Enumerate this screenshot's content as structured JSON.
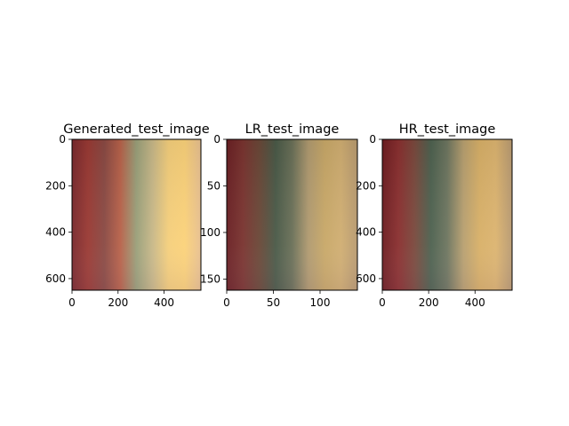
{
  "chart_data": [
    {
      "type": "image",
      "title": "Generated_test_image",
      "xlim": [
        0,
        560
      ],
      "ylim": [
        650,
        0
      ],
      "xticks": [
        0,
        200,
        400
      ],
      "yticks": [
        0,
        200,
        400,
        600
      ],
      "colors": [
        "#7a2a2e",
        "#9a3a34",
        "#8a4a44",
        "#b8624a",
        "#9aa07a",
        "#c8b888",
        "#f5cf7c",
        "#fbd27a",
        "#e8c090"
      ]
    },
    {
      "type": "image",
      "title": "LR_test_image",
      "xlim": [
        0,
        140
      ],
      "ylim": [
        162,
        0
      ],
      "xticks": [
        0,
        50,
        100
      ],
      "yticks": [
        0,
        50,
        100,
        150
      ],
      "colors": [
        "#6a2024",
        "#7a3430",
        "#6a4838",
        "#4a5a48",
        "#6a7058",
        "#b09a70",
        "#c8a868",
        "#d0ae72",
        "#b89a70"
      ]
    },
    {
      "type": "image",
      "title": "HR_test_image",
      "xlim": [
        0,
        560
      ],
      "ylim": [
        650,
        0
      ],
      "xticks": [
        0,
        200,
        400
      ],
      "yticks": [
        0,
        200,
        400,
        600
      ],
      "colors": [
        "#6e1e22",
        "#8a3030",
        "#7a4a3e",
        "#4e6250",
        "#6e7660",
        "#b8a070",
        "#d8b068",
        "#dcb470",
        "#b89a72"
      ]
    }
  ]
}
